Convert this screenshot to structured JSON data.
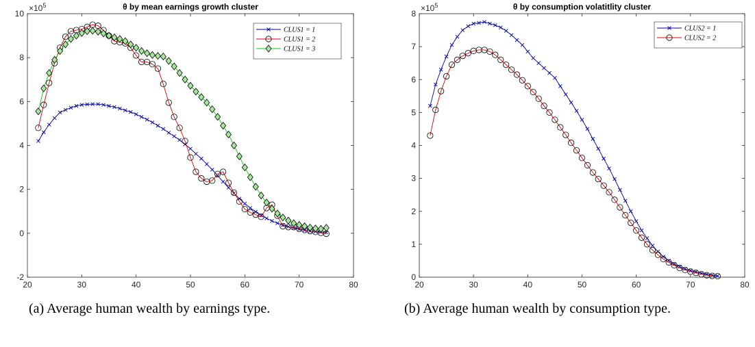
{
  "figure": {
    "captions": [
      {
        "label": "(a)",
        "text": "Average human wealth by earnings type."
      },
      {
        "label": "(b)",
        "text": "Average human wealth by consumption type."
      }
    ]
  },
  "chart_data": [
    {
      "type": "line",
      "title": "θ by mean earnings growth cluster",
      "xlim": [
        20,
        80
      ],
      "ylim": [
        -2,
        10
      ],
      "xticks": [
        20,
        30,
        40,
        50,
        60,
        70,
        80
      ],
      "yticks": [
        -2,
        0,
        2,
        4,
        6,
        8,
        10
      ],
      "y_multiplier": "×10",
      "y_multiplier_exp": "5",
      "grid": false,
      "legend_position": "top-right",
      "x": [
        22,
        23,
        24,
        25,
        26,
        27,
        28,
        29,
        30,
        31,
        32,
        33,
        34,
        35,
        36,
        37,
        38,
        39,
        40,
        41,
        42,
        43,
        44,
        45,
        46,
        47,
        48,
        49,
        50,
        51,
        52,
        53,
        54,
        55,
        56,
        57,
        58,
        59,
        60,
        61,
        62,
        63,
        64,
        65,
        66,
        67,
        68,
        69,
        70,
        71,
        72,
        73,
        74,
        75
      ],
      "series": [
        {
          "name": "CLUS1 = 1",
          "color": "#0000a0",
          "marker": "x",
          "values": [
            4.2,
            4.6,
            4.95,
            5.25,
            5.5,
            5.62,
            5.72,
            5.8,
            5.85,
            5.87,
            5.88,
            5.88,
            5.85,
            5.8,
            5.75,
            5.68,
            5.6,
            5.52,
            5.42,
            5.3,
            5.18,
            5.05,
            4.9,
            4.75,
            4.58,
            4.42,
            4.25,
            4.05,
            3.85,
            3.62,
            3.4,
            3.15,
            2.9,
            2.62,
            2.35,
            2.08,
            1.82,
            1.58,
            1.35,
            1.15,
            0.98,
            0.82,
            0.68,
            0.56,
            0.46,
            0.38,
            0.3,
            0.24,
            0.18,
            0.14,
            0.1,
            0.08,
            0.06,
            0.04
          ]
        },
        {
          "name": "CLUS1 = 2",
          "color": "#e00000",
          "marker": "o",
          "values": [
            4.8,
            5.85,
            6.85,
            7.75,
            8.45,
            8.95,
            9.2,
            9.25,
            9.3,
            9.4,
            9.5,
            9.45,
            9.25,
            9.0,
            8.75,
            8.7,
            8.65,
            8.45,
            8.1,
            7.8,
            7.8,
            7.7,
            7.5,
            6.8,
            5.95,
            5.3,
            4.8,
            4.2,
            3.45,
            2.8,
            2.5,
            2.35,
            2.4,
            2.7,
            2.8,
            2.3,
            1.85,
            1.45,
            1.1,
            0.95,
            0.85,
            0.75,
            1.15,
            1.3,
            0.8,
            0.32,
            0.28,
            0.28,
            0.2,
            0.15,
            0.1,
            0.06,
            0.02,
            -0.02
          ]
        },
        {
          "name": "CLUS1 = 3",
          "color": "#00c800",
          "marker": "diamond",
          "values": [
            5.55,
            6.6,
            7.3,
            7.9,
            8.3,
            8.6,
            8.85,
            9.0,
            9.12,
            9.2,
            9.22,
            9.18,
            9.1,
            9.0,
            8.92,
            8.85,
            8.75,
            8.6,
            8.45,
            8.3,
            8.2,
            8.12,
            8.08,
            8.05,
            7.85,
            7.6,
            7.3,
            7.0,
            6.72,
            6.45,
            6.2,
            5.95,
            5.65,
            5.3,
            4.9,
            4.5,
            4.0,
            3.5,
            3.0,
            2.55,
            2.12,
            1.72,
            1.4,
            1.12,
            0.9,
            0.72,
            0.58,
            0.46,
            0.38,
            0.32,
            0.26,
            0.22,
            0.2,
            0.25
          ]
        }
      ]
    },
    {
      "type": "line",
      "title": "θ by consumption volatitlity cluster",
      "xlim": [
        20,
        80
      ],
      "ylim": [
        0,
        8
      ],
      "xticks": [
        20,
        30,
        40,
        50,
        60,
        70,
        80
      ],
      "yticks": [
        0,
        1,
        2,
        3,
        4,
        5,
        6,
        7,
        8
      ],
      "y_multiplier": "×10",
      "y_multiplier_exp": "5",
      "grid": false,
      "legend_position": "top-right",
      "x": [
        22,
        23,
        24,
        25,
        26,
        27,
        28,
        29,
        30,
        31,
        32,
        33,
        34,
        35,
        36,
        37,
        38,
        39,
        40,
        41,
        42,
        43,
        44,
        45,
        46,
        47,
        48,
        49,
        50,
        51,
        52,
        53,
        54,
        55,
        56,
        57,
        58,
        59,
        60,
        61,
        62,
        63,
        64,
        65,
        66,
        67,
        68,
        69,
        70,
        71,
        72,
        73,
        74,
        75
      ],
      "series": [
        {
          "name": "CLUS2 = 1",
          "color": "#0000a0",
          "marker": "x",
          "values": [
            5.2,
            5.85,
            6.3,
            6.7,
            7.05,
            7.3,
            7.5,
            7.62,
            7.7,
            7.72,
            7.75,
            7.7,
            7.65,
            7.58,
            7.48,
            7.35,
            7.2,
            7.05,
            6.85,
            6.65,
            6.5,
            6.35,
            6.2,
            6.05,
            5.8,
            5.55,
            5.3,
            5.05,
            4.78,
            4.5,
            4.2,
            3.9,
            3.6,
            3.3,
            2.98,
            2.65,
            2.32,
            2.0,
            1.7,
            1.42,
            1.18,
            0.96,
            0.78,
            0.62,
            0.5,
            0.4,
            0.32,
            0.25,
            0.2,
            0.16,
            0.12,
            0.09,
            0.06,
            0.04
          ]
        },
        {
          "name": "CLUS2 = 2",
          "color": "#e00000",
          "marker": "o",
          "values": [
            4.3,
            5.08,
            5.65,
            6.1,
            6.45,
            6.6,
            6.72,
            6.8,
            6.87,
            6.9,
            6.9,
            6.85,
            6.75,
            6.6,
            6.45,
            6.3,
            6.15,
            5.98,
            5.8,
            5.62,
            5.42,
            5.2,
            5.0,
            4.78,
            4.55,
            4.32,
            4.08,
            3.85,
            3.62,
            3.4,
            3.18,
            2.98,
            2.78,
            2.58,
            2.35,
            2.12,
            1.88,
            1.65,
            1.42,
            1.2,
            1.0,
            0.82,
            0.68,
            0.55,
            0.45,
            0.36,
            0.28,
            0.22,
            0.17,
            0.13,
            0.09,
            0.06,
            0.04,
            0.03
          ]
        }
      ]
    }
  ]
}
